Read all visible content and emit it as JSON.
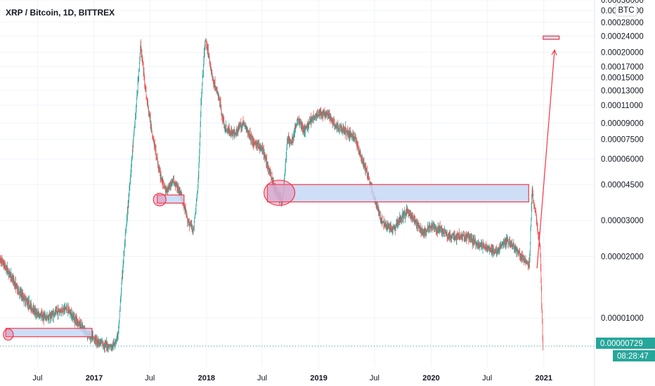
{
  "chart_data": {
    "type": "line",
    "title": "XRP / Bitcoin, 1D, BITTREX",
    "currency_button": "BTC",
    "x_ticks": [
      "Jul",
      "2017",
      "Jul",
      "2018",
      "Jul",
      "2019",
      "Jul",
      "2020",
      "Jul",
      "2021"
    ],
    "y_ticks": [
      "0.00036000",
      "0.00032000",
      "0.00028000",
      "0.00024000",
      "0.00020000",
      "0.00017000",
      "0.00015000",
      "0.00013000",
      "0.00011000",
      "0.00009000",
      "0.00007500",
      "0.00006000",
      "0.00004500",
      "0.00003000",
      "0.00002000",
      "0.00001000",
      "0.00000729"
    ],
    "y_scale": "log",
    "y_range": [
      5.8e-06,
      0.00036
    ],
    "x_range": [
      "2016-03-01",
      "2021-06-15"
    ],
    "current_price_label": "0.00000729",
    "countdown": "08:28:47",
    "colors": {
      "up": "#26a69a",
      "down": "#ef5350",
      "annotation": "#f23645",
      "zone_fill": "#c5d8f5",
      "current": "#26a69a"
    },
    "series": [
      {
        "x": [
          "2016-03-01",
          "2016-04-01",
          "2016-05-01",
          "2016-06-01",
          "2016-07-01",
          "2016-08-01",
          "2016-09-01",
          "2016-10-01",
          "2016-11-01",
          "2016-12-01",
          "2017-01-01",
          "2017-02-01",
          "2017-03-01",
          "2017-03-20",
          "2017-04-05",
          "2017-04-20",
          "2017-05-05",
          "2017-05-17",
          "2017-06-01",
          "2017-06-20",
          "2017-07-10",
          "2017-08-01",
          "2017-08-20",
          "2017-09-15",
          "2017-10-10",
          "2017-11-01",
          "2017-11-20",
          "2017-12-05",
          "2017-12-15",
          "2017-12-28",
          "2018-01-04",
          "2018-01-20",
          "2018-02-10",
          "2018-03-01",
          "2018-04-01",
          "2018-05-01",
          "2018-06-01",
          "2018-07-01",
          "2018-07-20",
          "2018-08-05",
          "2018-08-20",
          "2018-09-05",
          "2018-09-21",
          "2018-10-05",
          "2018-10-25",
          "2018-11-15",
          "2018-12-10",
          "2019-01-01",
          "2019-02-01",
          "2019-03-01",
          "2019-04-01",
          "2019-05-01",
          "2019-05-20",
          "2019-06-10",
          "2019-07-01",
          "2019-07-20",
          "2019-08-10",
          "2019-09-01",
          "2019-09-20",
          "2019-10-15",
          "2019-11-10",
          "2019-12-05",
          "2020-01-01",
          "2020-02-01",
          "2020-03-01",
          "2020-04-01",
          "2020-05-01",
          "2020-06-01",
          "2020-07-01",
          "2020-08-01",
          "2020-09-01",
          "2020-10-01",
          "2020-11-01",
          "2020-11-15",
          "2020-11-24",
          "2020-12-05",
          "2020-12-20",
          "2020-12-29"
        ],
        "values": [
          1.95e-05,
          1.65e-05,
          1.35e-05,
          1.18e-05,
          1.04e-05,
          1e-05,
          1.07e-05,
          1.12e-05,
          9.9e-06,
          8.6e-06,
          7.9e-06,
          7.4e-06,
          7.2e-06,
          8.3e-06,
          1.85e-05,
          3.4e-05,
          6.5e-05,
          0.000105,
          0.000215,
          0.00012,
          7.8e-05,
          5.2e-05,
          4.2e-05,
          4.7e-05,
          4e-05,
          3e-05,
          2.7e-05,
          4.5e-05,
          0.00012,
          0.00023,
          0.00021,
          0.00015,
          0.00012,
          8.5e-05,
          8e-05,
          9e-05,
          7.3e-05,
          6.7e-05,
          5.5e-05,
          4.6e-05,
          4e-05,
          3.7e-05,
          7.5e-05,
          7.2e-05,
          9.5e-05,
          8.2e-05,
          9.5e-05,
          0.0001,
          9.8e-05,
          8.6e-05,
          8.2e-05,
          7.5e-05,
          6e-05,
          5e-05,
          3.8e-05,
          3.1e-05,
          2.8e-05,
          2.7e-05,
          3e-05,
          3.3e-05,
          3e-05,
          2.6e-05,
          2.8e-05,
          2.7e-05,
          2.5e-05,
          2.5e-05,
          2.5e-05,
          2.3e-05,
          2.2e-05,
          2.1e-05,
          2.4e-05,
          2.2e-05,
          1.9e-05,
          1.8e-05,
          4.2e-05,
          3.3e-05,
          2.2e-05,
          7.3e-06
        ]
      }
    ],
    "annotations": {
      "rectangles": [
        {
          "x": [
            "2016-03-20",
            "2016-12-25"
          ],
          "y": [
            8.1e-06,
            8.9e-06
          ]
        },
        {
          "x": [
            "2017-07-25",
            "2017-10-20"
          ],
          "y": [
            3.65e-05,
            4e-05
          ]
        },
        {
          "x": [
            "2018-07-18",
            "2020-11-13"
          ],
          "y": [
            3.7e-05,
            4.5e-05
          ]
        },
        {
          "x": [
            "2020-12-30",
            "2021-02-20"
          ],
          "y": [
            0.000231,
            0.00024
          ]
        }
      ],
      "ellipses": [
        {
          "x": "2016-03-28",
          "y": 8.3e-06
        },
        {
          "x": "2017-08-02",
          "y": 3.8e-05
        },
        {
          "x": "2018-08-26",
          "y": 4.1e-05
        }
      ],
      "arrow": {
        "from": [
          "2020-12-10",
          1.75e-05
        ],
        "to": [
          "2021-02-05",
          0.000205
        ]
      }
    }
  }
}
